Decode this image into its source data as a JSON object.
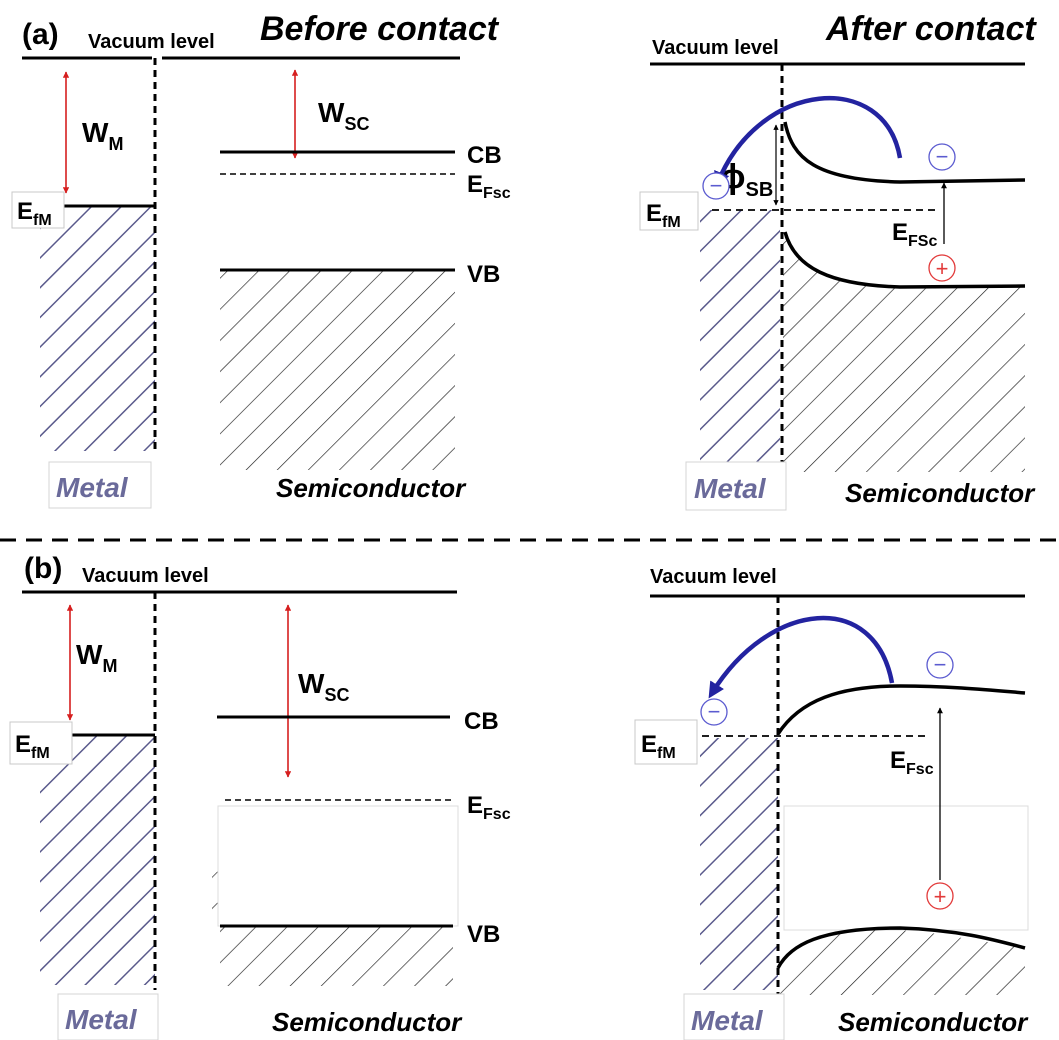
{
  "panels": {
    "a": {
      "tag": "(a)",
      "before": {
        "heading": "Before contact",
        "vacuum_label": "Vacuum level",
        "wm_main": "W",
        "wm_sub": "M",
        "wsc_main": "W",
        "wsc_sub": "SC",
        "cb_label": "CB",
        "efsc_main": "E",
        "efsc_sub": "Fsc",
        "efm_main": "E",
        "efm_sub": "fM",
        "vb_label": "VB",
        "metal_label": "Metal",
        "semi_label": "Semiconductor"
      },
      "after": {
        "heading": "After contact",
        "vacuum_label": "Vacuum level",
        "phi_main": "ϕ",
        "phi_sub": "SB",
        "efm_main": "E",
        "efm_sub": "fM",
        "efsc_main": "E",
        "efsc_sub": "FSc",
        "metal_label": "Metal",
        "semi_label": "Semiconductor",
        "electron_sign": "−",
        "hole_sign": "+"
      }
    },
    "b": {
      "tag": "(b)",
      "before": {
        "vacuum_label": "Vacuum level",
        "wm_main": "W",
        "wm_sub": "M",
        "wsc_main": "W",
        "wsc_sub": "SC",
        "cb_label": "CB",
        "efsc_main": "E",
        "efsc_sub": "Fsc",
        "efm_main": "E",
        "efm_sub": "fM",
        "vb_label": "VB",
        "metal_label": "Metal",
        "semi_label": "Semiconductor"
      },
      "after": {
        "vacuum_label": "Vacuum level",
        "efm_main": "E",
        "efm_sub": "fM",
        "efsc_main": "E",
        "efsc_sub": "Fsc",
        "metal_label": "Metal",
        "semi_label": "Semiconductor",
        "electron_sign": "−",
        "hole_sign": "+"
      }
    }
  },
  "colors": {
    "metal_hatch": "#5a5a8c",
    "metal_label": "#6a6a9a",
    "arrow_red": "#d61f1f",
    "transfer_arrow": "#2323a0",
    "electron": "#5b5bd0",
    "hole": "#e23a3a"
  }
}
